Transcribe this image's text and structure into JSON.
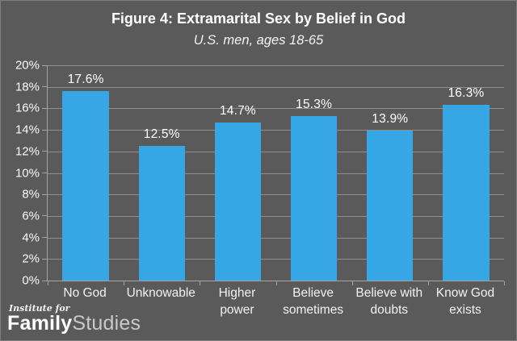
{
  "figure": {
    "title": "Figure 4: Extramarital Sex by Belief in God",
    "subtitle": "U.S. men, ages 18-65"
  },
  "chart_data": {
    "type": "bar",
    "title": "Figure 4: Extramarital Sex by Belief in God",
    "subtitle": "U.S. men, ages 18-65",
    "categories": [
      "No God",
      "Unknowable",
      "Higher power",
      "Believe sometimes",
      "Believe with doubts",
      "Know God exists"
    ],
    "values": [
      17.6,
      12.5,
      14.7,
      15.3,
      13.9,
      16.3
    ],
    "data_labels": [
      "17.6%",
      "12.5%",
      "14.7%",
      "15.3%",
      "13.9%",
      "16.3%"
    ],
    "xlabel": "",
    "ylabel": "",
    "ylim": [
      0,
      20
    ],
    "y_tick_step": 2,
    "y_tick_labels_top_to_bottom": [
      "20%",
      "18%",
      "16%",
      "14%",
      "12%",
      "10%",
      "8%",
      "6%",
      "4%",
      "2%",
      "0%"
    ],
    "grid": "horizontal",
    "legend_position": "none",
    "bar_color": "#37a6e4",
    "background_color": "#5a5a5a",
    "gridline_color": "#8f8f8f",
    "label_color": "#ffffff"
  },
  "logo": {
    "line1": "Institute for",
    "word1": "Family",
    "word2": "Studies"
  }
}
